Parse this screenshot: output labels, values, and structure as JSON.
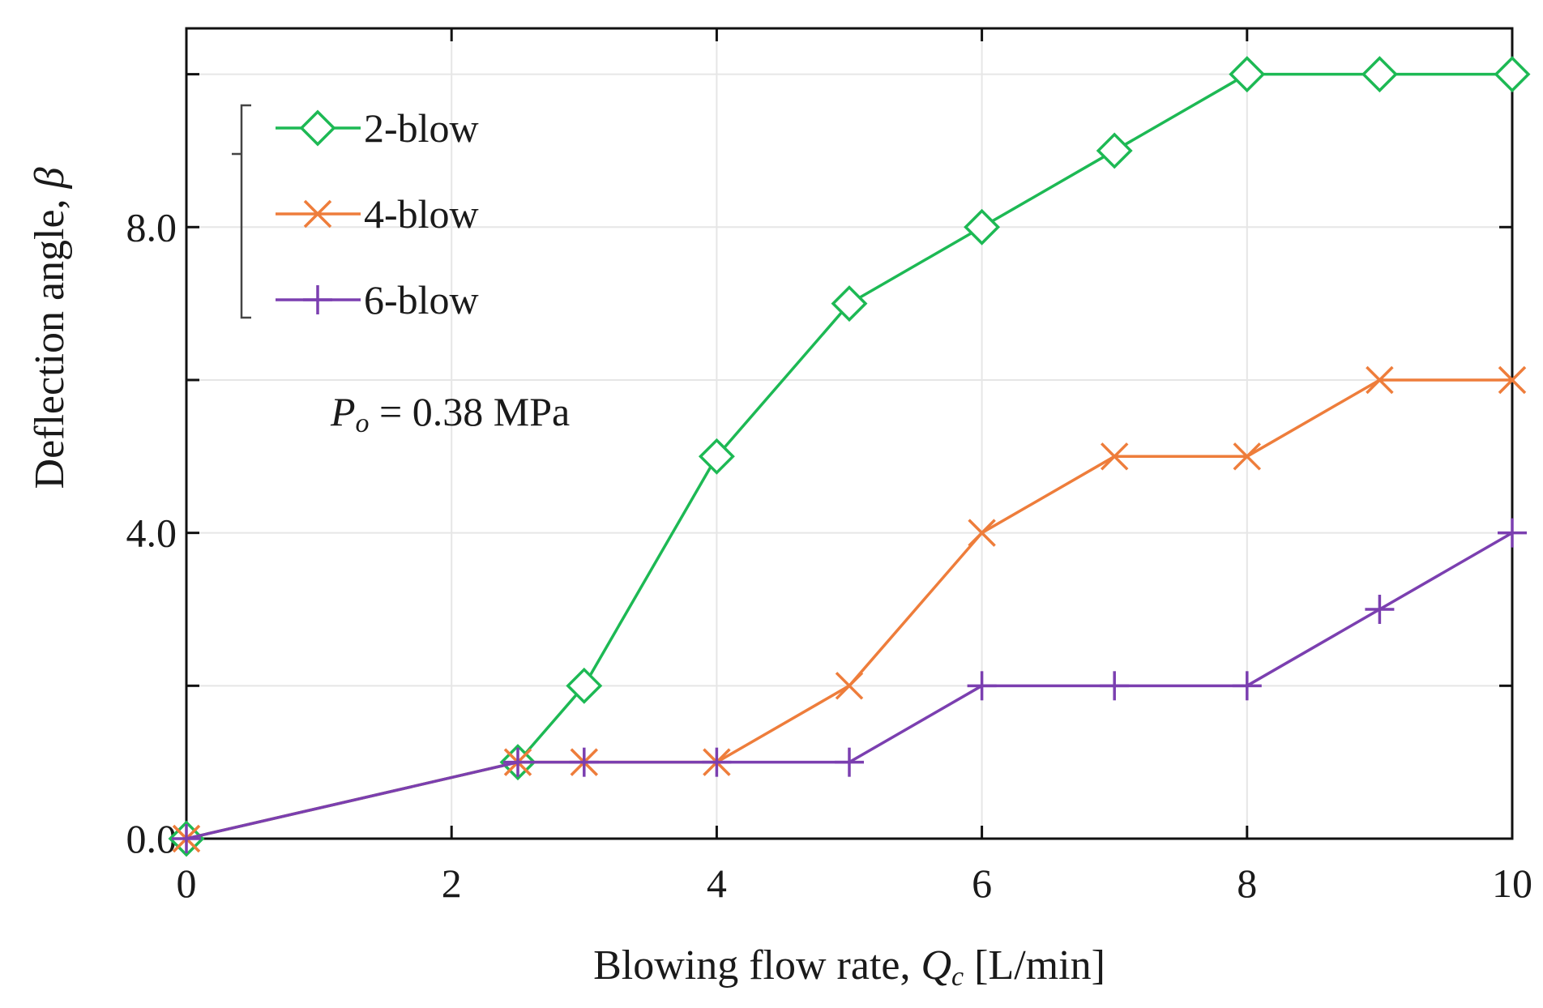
{
  "chart_data": {
    "type": "line",
    "title": "",
    "xlabel": "Blowing flow rate, ",
    "xlabel_var": "Q",
    "xlabel_sub": "c",
    "xlabel_unit": " [L/min]",
    "ylabel": "Deflection angle, ",
    "ylabel_var": "β",
    "xlim": [
      0,
      10
    ],
    "ylim": [
      0,
      10.6
    ],
    "xticks": [
      0,
      2,
      4,
      6,
      8,
      10
    ],
    "xtick_labels": [
      "0",
      "2",
      "4",
      "6",
      "8",
      "10"
    ],
    "yticks_labeled": [
      0,
      4,
      8
    ],
    "ytick_labels": [
      "0.0",
      "4.0",
      "8.0"
    ],
    "ygrid": [
      0,
      2,
      4,
      6,
      8,
      10
    ],
    "grid": true,
    "legend_position": "top-left",
    "annotation": {
      "var": "P",
      "sub": "o",
      "text": " = 0.38 MPa"
    },
    "series": [
      {
        "name": "2-blow",
        "color": "#1db954",
        "marker": "diamond",
        "x": [
          0,
          2.5,
          3,
          4,
          5,
          6,
          7,
          8,
          9,
          10
        ],
        "y": [
          0,
          1,
          2,
          5,
          7,
          8,
          9,
          10,
          10,
          10
        ]
      },
      {
        "name": "4-blow",
        "color": "#ee7d3b",
        "marker": "x",
        "x": [
          0,
          2.5,
          3,
          4,
          5,
          6,
          7,
          8,
          9,
          10
        ],
        "y": [
          0,
          1,
          1,
          1,
          2,
          4,
          5,
          5,
          6,
          6
        ]
      },
      {
        "name": "6-blow",
        "color": "#7b3fb0",
        "marker": "plus",
        "x": [
          0,
          2.5,
          3,
          4,
          5,
          6,
          7,
          8,
          9,
          10
        ],
        "y": [
          0,
          1,
          1,
          1,
          1,
          2,
          2,
          2,
          3,
          4
        ]
      }
    ]
  }
}
